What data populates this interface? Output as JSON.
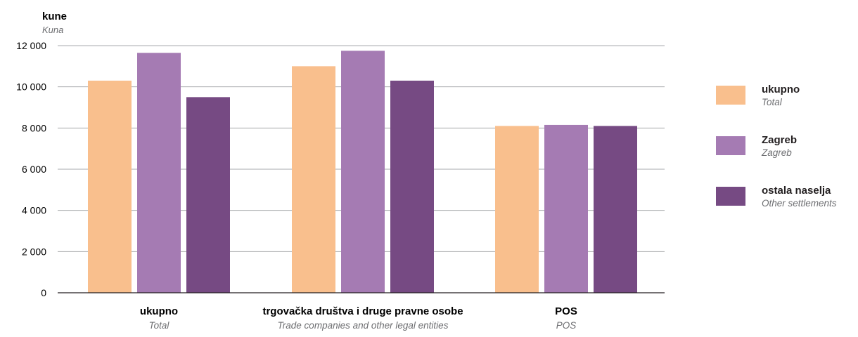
{
  "chart_data": {
    "type": "bar",
    "ylabel": "kune",
    "ylabel_sub": "Kuna",
    "ylim": [
      0,
      12000
    ],
    "yticks": [
      0,
      2000,
      4000,
      6000,
      8000,
      10000,
      12000
    ],
    "ytick_labels": [
      "0",
      "2 000",
      "4 000",
      "6 000",
      "8 000",
      "10 000",
      "12 000"
    ],
    "grid": "horizontal",
    "legend_position": "right",
    "categories": [
      {
        "label": "ukupno",
        "sub": "Total"
      },
      {
        "label": "trgovačka društva i druge pravne osobe",
        "sub": "Trade companies and other legal entities"
      },
      {
        "label": "POS",
        "sub": "POS"
      }
    ],
    "series": [
      {
        "name": "ukupno",
        "name_sub": "Total",
        "color": "#f9bf8d",
        "values": [
          10300,
          11000,
          8100
        ]
      },
      {
        "name": "Zagreb",
        "name_sub": "Zagreb",
        "color": "#a57bb3",
        "values": [
          11650,
          11750,
          8150
        ]
      },
      {
        "name": "ostala naselja",
        "name_sub": "Other settlements",
        "color": "#764a83",
        "values": [
          9500,
          10300,
          8100
        ]
      }
    ]
  }
}
